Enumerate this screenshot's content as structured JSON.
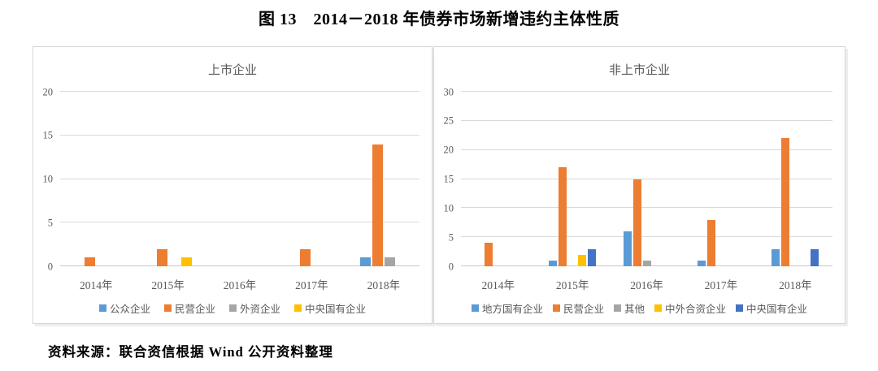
{
  "page": {
    "title": "图 13　2014－2018 年债券市场新增违约主体性质",
    "source": "资料来源：联合资信根据 Wind 公开资料整理"
  },
  "colors": {
    "blue": "#5B9BD5",
    "orange": "#ED7D31",
    "gray": "#A5A5A5",
    "yellow": "#FFC000",
    "dark_blue": "#4472C4",
    "gridline": "#D9D9D9",
    "axis_text": "#595959",
    "panel_border": "#D6D6D6"
  },
  "chart_data": [
    {
      "type": "bar",
      "title": "上市企业",
      "categories": [
        "2014年",
        "2015年",
        "2016年",
        "2017年",
        "2018年"
      ],
      "ylim": [
        0,
        20
      ],
      "yticks": [
        0,
        5,
        10,
        15,
        20
      ],
      "grid": true,
      "legend_position": "bottom",
      "series": [
        {
          "name": "公众企业",
          "color": "#5B9BD5",
          "values": [
            0,
            0,
            0,
            0,
            1
          ]
        },
        {
          "name": "民营企业",
          "color": "#ED7D31",
          "values": [
            1,
            2,
            0,
            2,
            14
          ]
        },
        {
          "name": "外资企业",
          "color": "#A5A5A5",
          "values": [
            0,
            0,
            0,
            0,
            1
          ]
        },
        {
          "name": "中央国有企业",
          "color": "#FFC000",
          "values": [
            0,
            1,
            0,
            0,
            0
          ]
        }
      ]
    },
    {
      "type": "bar",
      "title": "非上市企业",
      "categories": [
        "2014年",
        "2015年",
        "2016年",
        "2017年",
        "2018年"
      ],
      "ylim": [
        0,
        30
      ],
      "yticks": [
        0,
        5,
        10,
        15,
        20,
        25,
        30
      ],
      "grid": true,
      "legend_position": "bottom",
      "series": [
        {
          "name": "地方国有企业",
          "color": "#5B9BD5",
          "values": [
            0,
            1,
            6,
            1,
            3
          ]
        },
        {
          "name": "民营企业",
          "color": "#ED7D31",
          "values": [
            4,
            17,
            15,
            8,
            22
          ]
        },
        {
          "name": "其他",
          "color": "#A5A5A5",
          "values": [
            0,
            0,
            1,
            0,
            0
          ]
        },
        {
          "name": "中外合资企业",
          "color": "#FFC000",
          "values": [
            0,
            2,
            0,
            0,
            0
          ]
        },
        {
          "name": "中央国有企业",
          "color": "#4472C4",
          "values": [
            0,
            3,
            0,
            0,
            3
          ]
        }
      ]
    }
  ]
}
